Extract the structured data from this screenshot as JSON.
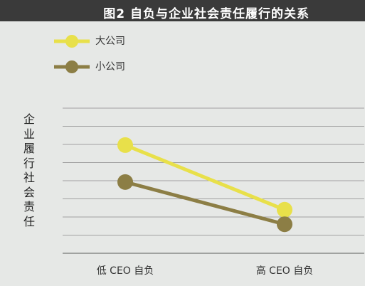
{
  "title": "图2  自负与企业社会责任履行的关系",
  "chart_data": {
    "type": "line",
    "title": "图2  自负与企业社会责任履行的关系",
    "categories": [
      "低 CEO 自负",
      "高 CEO 自负"
    ],
    "series": [
      {
        "name": "大公司",
        "values": [
          7.2,
          2.3
        ],
        "color": "#e8e04a"
      },
      {
        "name": "小公司",
        "values": [
          4.4,
          1.2
        ],
        "color": "#8c7e45"
      }
    ],
    "ylabel": "企业履行社会责任",
    "xlabel": "",
    "ylim": [
      -1,
      10
    ],
    "grid": true,
    "legend": "top-left"
  }
}
